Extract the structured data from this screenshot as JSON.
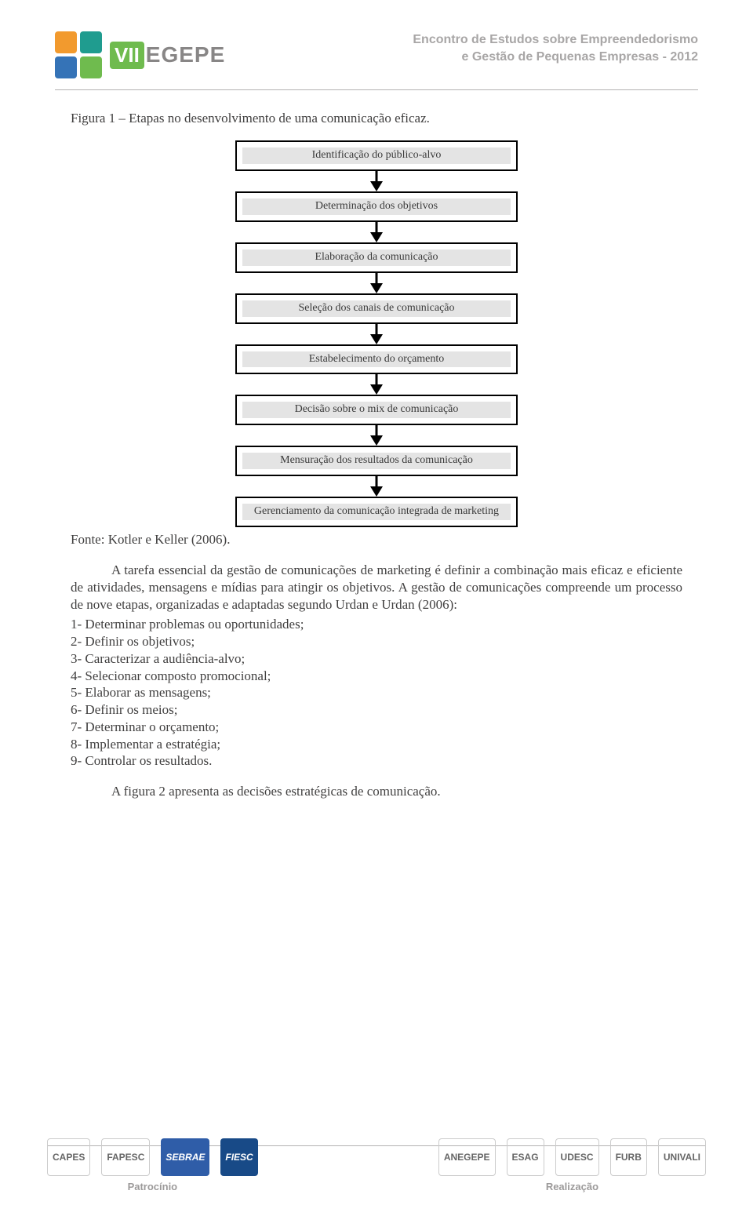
{
  "header": {
    "logo_vii": "VII",
    "logo_egepe": "EGEPE",
    "line1": "Encontro de Estudos sobre Empreendedorismo",
    "line2": "e Gestão de Pequenas  Empresas - 2012",
    "square_colors": [
      "#f29a2e",
      "#1f9c8f",
      "#3573b7",
      "#6fbb4e"
    ]
  },
  "figure": {
    "title": "Figura 1 – Etapas no desenvolvimento de uma comunicação eficaz.",
    "nodes": [
      "Identificação do público-alvo",
      "Determinação dos objetivos",
      "Elaboração da comunicação",
      "Seleção dos canais de comunicação",
      "Estabelecimento do orçamento",
      "Decisão sobre o mix de comunicação",
      "Mensuração dos resultados da comunicação",
      "Gerenciamento da comunicação integrada de marketing"
    ],
    "node_border_color": "#000000",
    "node_fill_color": "#e4e4e4",
    "source": "Fonte: Kotler e Keller (2006)."
  },
  "body": {
    "para": "A tarefa essencial da gestão de comunicações de marketing é definir a combinação mais eficaz e eficiente de atividades, mensagens e mídias para atingir os objetivos. A gestão de comunicações compreende um processo de nove etapas, organizadas e adaptadas segundo Urdan e Urdan (2006):",
    "items": [
      "1- Determinar problemas ou oportunidades;",
      "2- Definir os objetivos;",
      "3- Caracterizar a audiência-alvo;",
      "4- Selecionar composto promocional;",
      "5- Elaborar as mensagens;",
      "6- Definir os meios;",
      "7- Determinar o orçamento;",
      "8- Implementar a estratégia;",
      "9- Controlar os resultados."
    ],
    "after": "A figura 2 apresenta as decisões estratégicas de comunicação."
  },
  "footer": {
    "patrocinio": "Patrocínio",
    "realizacao": "Realização",
    "left_logos": [
      "CAPES",
      "FAPESC",
      "SEBRAE",
      "FIESC"
    ],
    "right_logos": [
      "ANEGEPE",
      "ESAG",
      "UDESC",
      "FURB",
      "UNIVALI"
    ],
    "logo_colors": {
      "CAPES": "#ffffff",
      "FAPESC": "#ffffff",
      "SEBRAE": "#2f5da8",
      "FIESC": "#184a87",
      "ANEGEPE": "#ffffff",
      "ESAG": "#ffffff",
      "UDESC": "#ffffff",
      "FURB": "#ffffff",
      "UNIVALI": "#ffffff"
    }
  }
}
